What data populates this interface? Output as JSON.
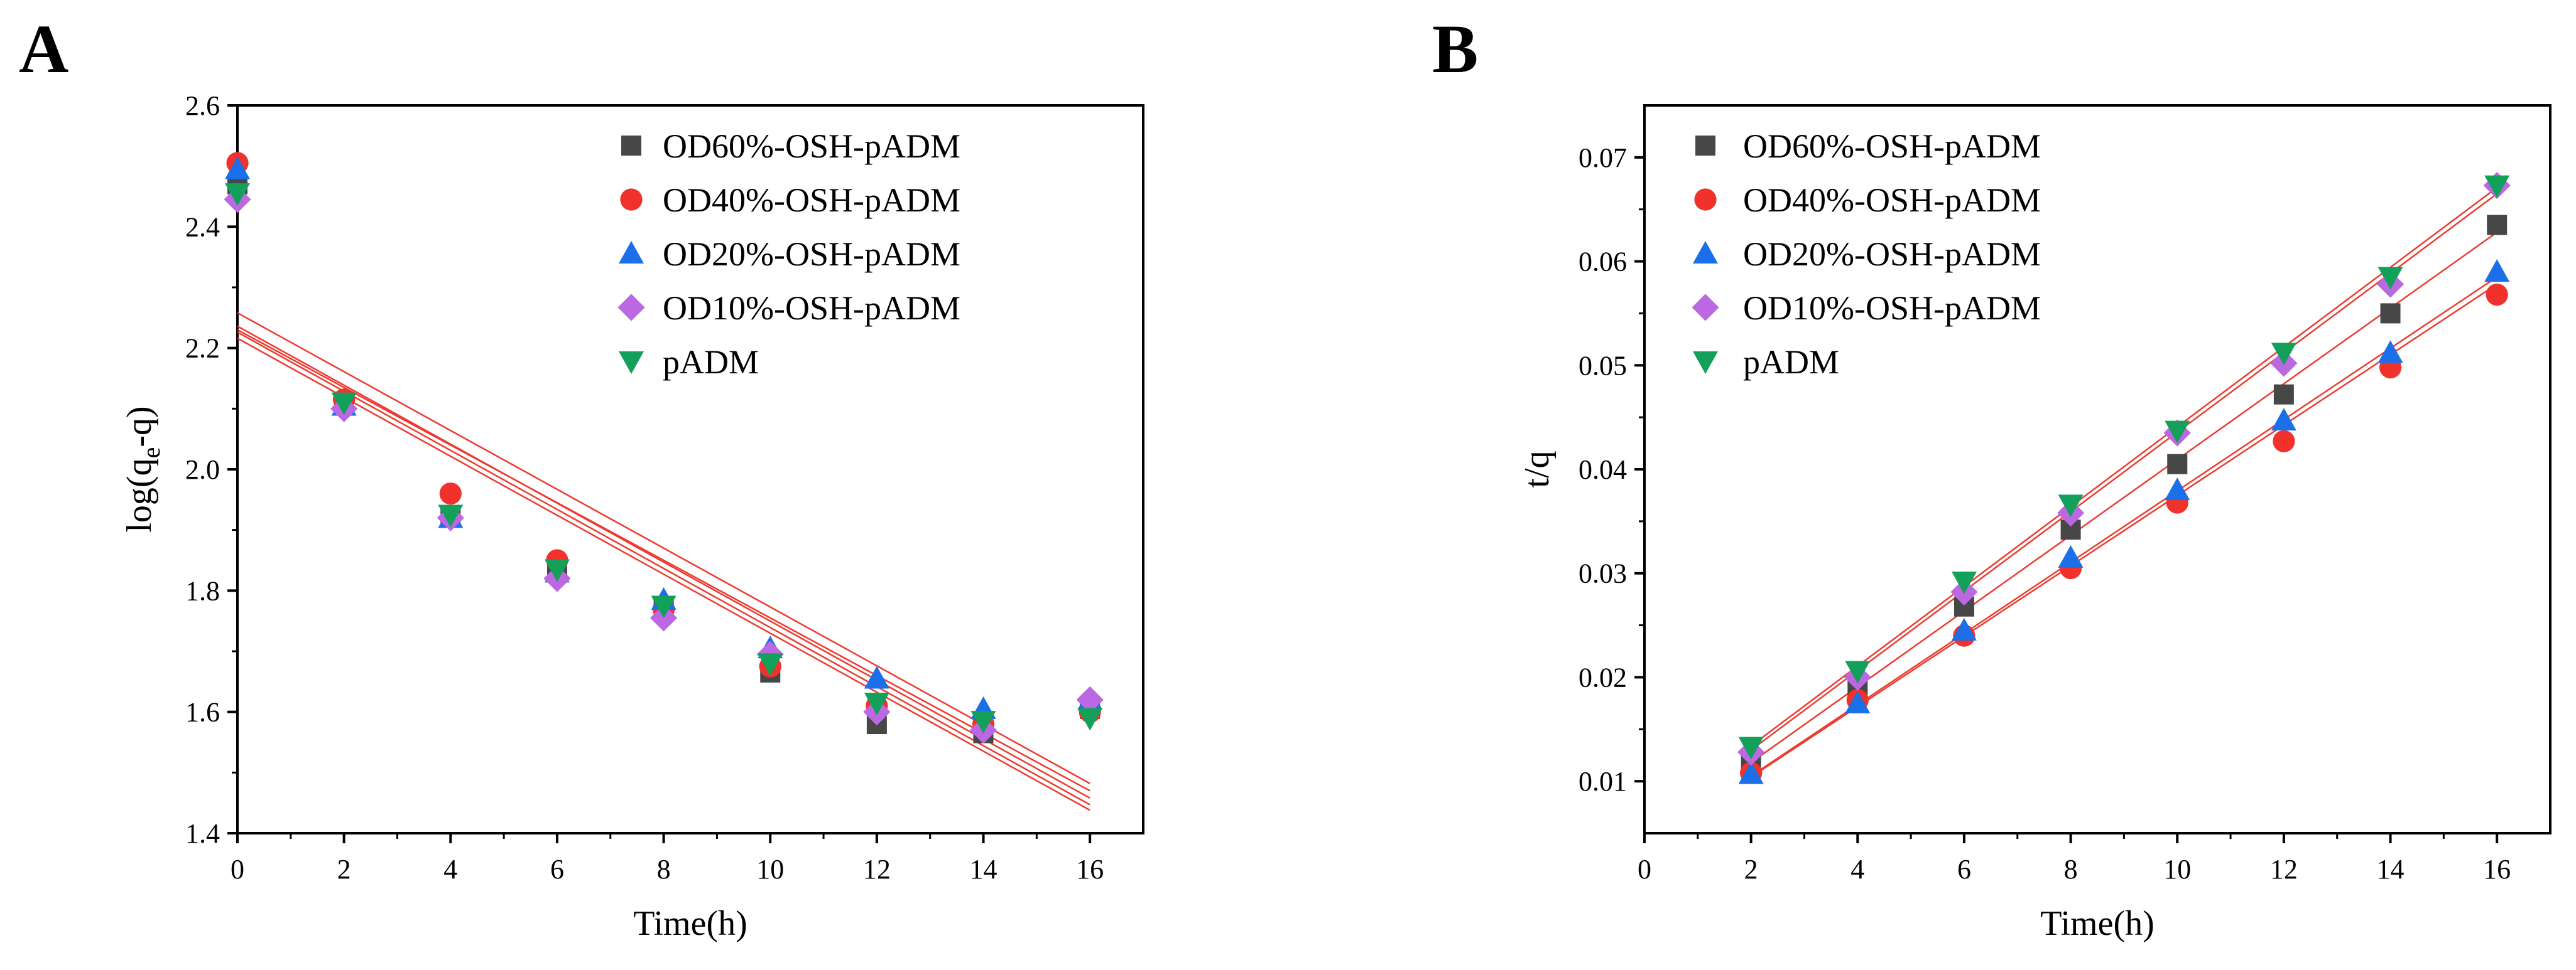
{
  "colors": {
    "OD60": "#474747",
    "OD40": "#f0312c",
    "OD20": "#1b6fe8",
    "OD10": "#bd68e3",
    "pADM": "#13a05a",
    "fit": "#ee3a2f"
  },
  "chart_data": [
    {
      "type": "scatter",
      "panel_label": "A",
      "xlabel": "Time(h)",
      "ylabel_main": "log(q",
      "ylabel_sub": "e",
      "ylabel_tail": "-q)",
      "xlim": [
        0,
        17
      ],
      "ylim": [
        1.4,
        2.6
      ],
      "xticks": [
        0,
        2,
        4,
        6,
        8,
        10,
        12,
        14,
        16
      ],
      "xtick_labels": [
        "0",
        "2",
        "4",
        "6",
        "8",
        "10",
        "12",
        "14",
        "16"
      ],
      "yticks": [
        1.4,
        1.6,
        1.8,
        2.0,
        2.2,
        2.4,
        2.6
      ],
      "ytick_labels": [
        "1.4",
        "1.6",
        "1.8",
        "2.0",
        "2.2",
        "2.4",
        "2.6"
      ],
      "legend_position": "top-right",
      "series": [
        {
          "name": "OD60%-OSH-pADM",
          "key": "OD60",
          "marker": "square",
          "x": [
            0,
            2,
            4,
            6,
            8,
            10,
            12,
            14,
            16
          ],
          "y": [
            2.47,
            2.11,
            1.92,
            1.84,
            1.77,
            1.665,
            1.58,
            1.565,
            1.605
          ]
        },
        {
          "name": "OD40%-OSH-pADM",
          "key": "OD40",
          "marker": "circle",
          "x": [
            0,
            2,
            4,
            6,
            8,
            10,
            12,
            14,
            16
          ],
          "y": [
            2.505,
            2.115,
            1.96,
            1.85,
            1.77,
            1.675,
            1.61,
            1.58,
            1.6
          ]
        },
        {
          "name": "OD20%-OSH-pADM",
          "key": "OD20",
          "marker": "triangle-up",
          "x": [
            0,
            2,
            4,
            6,
            8,
            10,
            12,
            14,
            16
          ],
          "y": [
            2.495,
            2.105,
            1.92,
            1.83,
            1.785,
            1.705,
            1.655,
            1.605,
            1.62
          ]
        },
        {
          "name": "OD10%-OSH-pADM",
          "key": "OD10",
          "marker": "diamond",
          "x": [
            0,
            2,
            4,
            6,
            8,
            10,
            12,
            14,
            16
          ],
          "y": [
            2.445,
            2.1,
            1.92,
            1.82,
            1.755,
            1.695,
            1.6,
            1.57,
            1.62
          ]
        },
        {
          "name": "pADM",
          "key": "pADM",
          "marker": "triangle-down",
          "x": [
            0,
            2,
            4,
            6,
            8,
            10,
            12,
            14,
            16
          ],
          "y": [
            2.455,
            2.11,
            1.925,
            1.835,
            1.775,
            1.68,
            1.615,
            1.585,
            1.59
          ]
        }
      ],
      "fit_lines": [
        {
          "x": [
            0,
            16
          ],
          "y": [
            2.258,
            1.482
          ]
        },
        {
          "x": [
            0,
            16
          ],
          "y": [
            2.236,
            1.458
          ]
        },
        {
          "x": [
            0,
            16
          ],
          "y": [
            2.226,
            1.447
          ]
        },
        {
          "x": [
            0,
            16
          ],
          "y": [
            2.216,
            1.438
          ]
        },
        {
          "x": [
            0,
            16
          ],
          "y": [
            2.23,
            1.47
          ]
        }
      ]
    },
    {
      "type": "scatter",
      "panel_label": "B",
      "xlabel": "Time(h)",
      "ylabel": "t/q",
      "xlim": [
        0,
        17
      ],
      "ylim": [
        0.005,
        0.075
      ],
      "xticks": [
        0,
        2,
        4,
        6,
        8,
        10,
        12,
        14,
        16
      ],
      "xtick_labels": [
        "0",
        "2",
        "4",
        "6",
        "8",
        "10",
        "12",
        "14",
        "16"
      ],
      "yticks": [
        0.01,
        0.02,
        0.03,
        0.04,
        0.05,
        0.06,
        0.07
      ],
      "ytick_labels": [
        "0.01",
        "0.02",
        "0.03",
        "0.04",
        "0.05",
        "0.06",
        "0.07"
      ],
      "legend_position": "top-left",
      "series": [
        {
          "name": "OD60%-OSH-pADM",
          "key": "OD60",
          "marker": "square",
          "x": [
            2,
            4,
            6,
            8,
            10,
            12,
            14,
            16
          ],
          "y": [
            0.0118,
            0.0188,
            0.0268,
            0.0342,
            0.0405,
            0.0472,
            0.055,
            0.0635
          ]
        },
        {
          "name": "OD40%-OSH-pADM",
          "key": "OD40",
          "marker": "circle",
          "x": [
            2,
            4,
            6,
            8,
            10,
            12,
            14,
            16
          ],
          "y": [
            0.0108,
            0.0178,
            0.024,
            0.0305,
            0.0368,
            0.0427,
            0.0498,
            0.0568
          ]
        },
        {
          "name": "OD20%-OSH-pADM",
          "key": "OD20",
          "marker": "triangle-up",
          "x": [
            2,
            4,
            6,
            8,
            10,
            12,
            14,
            16
          ],
          "y": [
            0.0107,
            0.0175,
            0.0245,
            0.0315,
            0.038,
            0.0447,
            0.0512,
            0.059
          ]
        },
        {
          "name": "OD10%-OSH-pADM",
          "key": "OD10",
          "marker": "diamond",
          "x": [
            2,
            4,
            6,
            8,
            10,
            12,
            14,
            16
          ],
          "y": [
            0.0128,
            0.02,
            0.0282,
            0.0358,
            0.0435,
            0.0502,
            0.0578,
            0.0673
          ]
        },
        {
          "name": "pADM",
          "key": "pADM",
          "marker": "triangle-down",
          "x": [
            2,
            4,
            6,
            8,
            10,
            12,
            14,
            16
          ],
          "y": [
            0.0133,
            0.0206,
            0.0292,
            0.0366,
            0.0437,
            0.0512,
            0.0585,
            0.0673
          ]
        }
      ],
      "fit_lines": [
        {
          "x": [
            2,
            16
          ],
          "y": [
            0.0118,
            0.0628
          ]
        },
        {
          "x": [
            2,
            16
          ],
          "y": [
            0.0104,
            0.0578
          ]
        },
        {
          "x": [
            2,
            16
          ],
          "y": [
            0.0105,
            0.0585
          ]
        },
        {
          "x": [
            2,
            16
          ],
          "y": [
            0.013,
            0.0665
          ]
        },
        {
          "x": [
            2,
            16
          ],
          "y": [
            0.0134,
            0.0671
          ]
        }
      ]
    }
  ]
}
